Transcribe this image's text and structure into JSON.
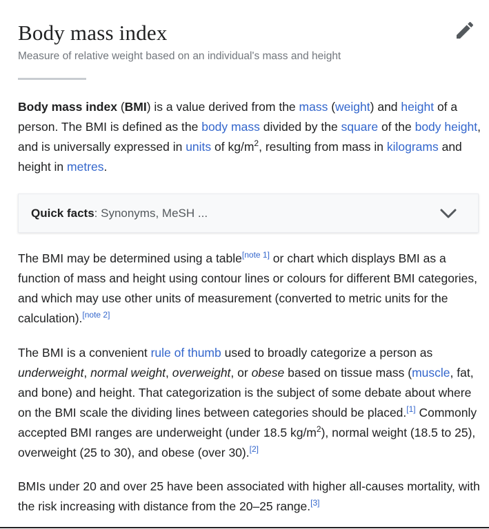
{
  "article": {
    "title": "Body mass index",
    "description": "Measure of relative weight based on an individual's mass and height",
    "edit_icon": "pencil-icon"
  },
  "intro": {
    "bold_term": "Body mass index",
    "open_paren": " (",
    "abbr": "BMI",
    "t1": ") is a value derived from the ",
    "link_mass": "mass",
    "t2": " (",
    "link_weight": "weight",
    "t3": ") and ",
    "link_height": "height",
    "t4": " of a person. The BMI is defined as the ",
    "link_body_mass": "body mass",
    "t5": " divided by the ",
    "link_square": "square",
    "t6": " of the ",
    "link_body_height": "body height",
    "t7": ", and is universally expressed in ",
    "link_units": "units",
    "t8": " of kg/m",
    "sup2": "2",
    "t9": ", resulting from mass in ",
    "link_kilograms": "kilograms",
    "t10": " and height in ",
    "link_metres": "metres",
    "t11": "."
  },
  "quick_facts": {
    "label": "Quick facts",
    "summary": ": Synonyms, MeSH ...",
    "chevron_icon": "chevron-down-icon"
  },
  "para2": {
    "t1": "The BMI may be determined using a table",
    "note1": "[note 1]",
    "t2": " or chart which displays BMI as a function of mass and height using contour lines or colours for different BMI categories, and which may use other units of measurement (converted to metric units for the calculation).",
    "note2": "[note 2]"
  },
  "para3": {
    "t1": "The BMI is a convenient ",
    "link_rule": "rule of thumb",
    "t2": " used to broadly categorize a person as ",
    "i_underweight": "underweight",
    "c1": ", ",
    "i_normal": "normal weight",
    "c2": ", ",
    "i_overweight": "overweight",
    "c3": ", or ",
    "i_obese": "obese",
    "t3": " based on tissue mass (",
    "link_muscle": "muscle",
    "t4": ", fat, and bone) and height. That categorization is the subject of some debate about where on the BMI scale the dividing lines between categories should be placed.",
    "ref1": "[1]",
    "t5": " Commonly accepted BMI ranges are underweight (under 18.5 kg/m",
    "sup2": "2",
    "t6": "), normal weight (18.5 to 25), overweight (25 to 30), and obese (over 30).",
    "ref2": "[2]"
  },
  "para4": {
    "t1": "BMIs under 20 and over 25 have been associated with higher all-causes mortality, with the risk increasing with distance from the 20–25 range.",
    "ref3": "[3]"
  }
}
